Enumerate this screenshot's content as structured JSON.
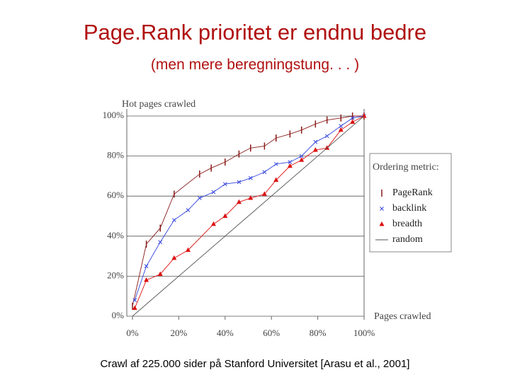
{
  "title": "Page.Rank prioritet er endnu bedre",
  "subtitle": "(men mere beregningstung. . . )",
  "caption": "Crawl af 225.000 sider på Stanford Universitet [Arasu et al., 2001]",
  "chart_data": {
    "type": "line",
    "y_label": "Hot pages crawled",
    "x_label": "Pages crawled",
    "legend_title": "Ordering metric:",
    "legend": "right",
    "grid": true,
    "xlim": [
      0,
      100
    ],
    "ylim": [
      0,
      100
    ],
    "xticks": [
      {
        "value": 0,
        "label": "0%"
      },
      {
        "value": 20,
        "label": "20%"
      },
      {
        "value": 40,
        "label": "40%"
      },
      {
        "value": 60,
        "label": "60%"
      },
      {
        "value": 80,
        "label": "80%"
      },
      {
        "value": 100,
        "label": "100%"
      }
    ],
    "yticks": [
      {
        "value": 0,
        "label": "0%"
      },
      {
        "value": 20,
        "label": "20%"
      },
      {
        "value": 40,
        "label": "40%"
      },
      {
        "value": 60,
        "label": "60%"
      },
      {
        "value": 80,
        "label": "80%"
      },
      {
        "value": 100,
        "label": "100%"
      }
    ],
    "series": [
      {
        "name": "PageRank",
        "color": "#8b1a1a",
        "marker": "bar",
        "x": [
          0,
          6,
          12,
          18,
          29,
          34,
          40,
          46,
          51,
          57,
          62,
          68,
          73,
          79,
          84,
          90,
          95,
          100
        ],
        "values": [
          5,
          36,
          44,
          61,
          71,
          74,
          77,
          81,
          84,
          85,
          89,
          91,
          93,
          96,
          98,
          99,
          100,
          100
        ]
      },
      {
        "name": "backlink",
        "color": "#3344dd",
        "marker": "x",
        "x": [
          1,
          6,
          12,
          18,
          24,
          29,
          35,
          40,
          46,
          51,
          57,
          62,
          68,
          73,
          79,
          84,
          90,
          95,
          100
        ],
        "values": [
          8,
          25,
          37,
          48,
          53,
          59,
          62,
          66,
          67,
          69,
          72,
          76,
          77,
          80,
          87,
          90,
          95,
          99,
          100
        ]
      },
      {
        "name": "breadth",
        "color": "#dd1111",
        "marker": "triangle",
        "x": [
          1,
          6,
          12,
          18,
          24,
          35,
          40,
          46,
          51,
          57,
          62,
          68,
          73,
          79,
          84,
          90,
          95,
          100
        ],
        "values": [
          4,
          18,
          21,
          29,
          33,
          46,
          50,
          57,
          59,
          61,
          68,
          75,
          78,
          83,
          84,
          93,
          97,
          100
        ]
      },
      {
        "name": "random",
        "color": "#555555",
        "marker": "none",
        "x": [
          0,
          100
        ],
        "values": [
          0,
          100
        ]
      }
    ]
  }
}
